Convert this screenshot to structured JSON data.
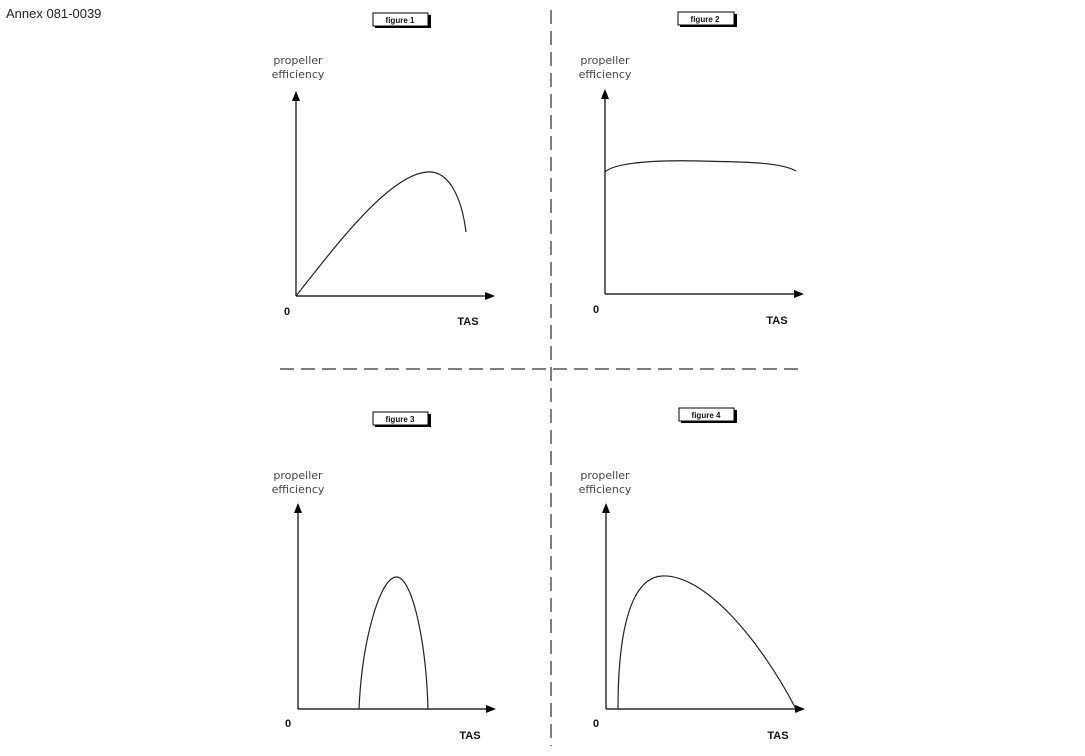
{
  "annex_label": "Annex 081-0039",
  "figures": [
    {
      "tag": "figure 1",
      "y_label_line1": "propeller",
      "y_label_line2": "efficiency",
      "origin": "0",
      "x_label": "TAS"
    },
    {
      "tag": "figure 2",
      "y_label_line1": "propeller",
      "y_label_line2": "efficiency",
      "origin": "0",
      "x_label": "TAS"
    },
    {
      "tag": "figure 3",
      "y_label_line1": "propeller",
      "y_label_line2": "efficiency",
      "origin": "0",
      "x_label": "TAS"
    },
    {
      "tag": "figure 4",
      "y_label_line1": "propeller",
      "y_label_line2": "efficiency",
      "origin": "0",
      "x_label": "TAS"
    }
  ]
}
